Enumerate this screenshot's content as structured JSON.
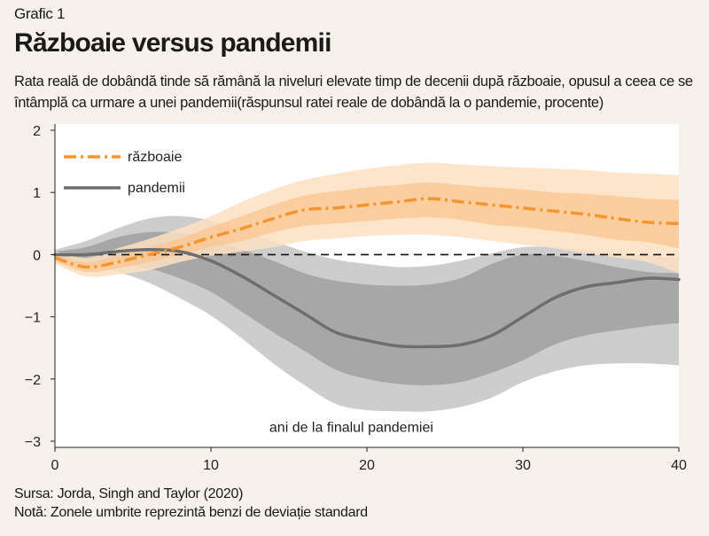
{
  "figure_label": "Grafic 1",
  "title": "Războaie versus pandemii",
  "subtitle": "Rata reală de dobândă tinde să rămână la niveluri elevate timp de decenii după războaie, opusul a ceea ce se întâmplă ca urmare a unei pandemii(răspunsul ratei reale de dobândă la o pandemie, procente)",
  "source": "Sursa: Jorda, Singh and Taylor (2020)",
  "note": "Notă: Zonele umbrite reprezintă benzi de deviație standard",
  "colors": {
    "war_line": "#f39530",
    "war_band_outer": "#fde0c2",
    "war_band_inner": "#fbc48f",
    "pandemic_line": "#6e6e72",
    "pandemic_band_outer": "#c8c8c8",
    "pandemic_band_inner": "#9a9a9a",
    "background": "#ffffff"
  },
  "chart_data": {
    "type": "line",
    "title": "Războaie versus pandemii",
    "xlabel": "ani de la finalul pandemiei",
    "ylabel": "",
    "xlim": [
      0,
      40
    ],
    "ylim": [
      -3.1,
      2.1
    ],
    "x_ticks": [
      0,
      10,
      20,
      30,
      40
    ],
    "y_ticks": [
      2,
      1,
      0,
      -1,
      -2,
      -3
    ],
    "y_tick_labels": [
      "2",
      "1",
      "0",
      "−1",
      "−2",
      "−3"
    ],
    "zero_line": true,
    "legend_position": "top-left",
    "x": [
      0,
      2,
      4,
      6,
      8,
      10,
      12,
      14,
      16,
      18,
      20,
      22,
      24,
      26,
      28,
      30,
      32,
      34,
      36,
      38,
      40
    ],
    "series": [
      {
        "name": "războaie",
        "style": "dash-dot",
        "values": [
          -0.05,
          -0.2,
          -0.12,
          0.0,
          0.12,
          0.28,
          0.42,
          0.58,
          0.72,
          0.75,
          0.8,
          0.85,
          0.9,
          0.85,
          0.8,
          0.75,
          0.7,
          0.65,
          0.58,
          0.52,
          0.5
        ],
        "band_inner": {
          "lower": [
            -0.1,
            -0.28,
            -0.22,
            -0.12,
            0.0,
            0.12,
            0.22,
            0.36,
            0.46,
            0.5,
            0.54,
            0.58,
            0.6,
            0.56,
            0.48,
            0.44,
            0.38,
            0.32,
            0.24,
            0.2,
            0.1
          ],
          "upper": [
            0.0,
            -0.12,
            -0.02,
            0.12,
            0.26,
            0.45,
            0.62,
            0.8,
            0.95,
            1.02,
            1.08,
            1.12,
            1.16,
            1.12,
            1.08,
            1.05,
            1.0,
            0.98,
            0.94,
            0.9,
            0.88
          ]
        },
        "band_outer": {
          "lower": [
            -0.15,
            -0.35,
            -0.32,
            -0.25,
            -0.12,
            -0.02,
            0.05,
            0.12,
            0.22,
            0.26,
            0.3,
            0.32,
            0.32,
            0.28,
            0.22,
            0.16,
            0.1,
            0.02,
            -0.05,
            -0.12,
            -0.3
          ],
          "upper": [
            0.05,
            -0.05,
            0.1,
            0.25,
            0.42,
            0.62,
            0.85,
            1.05,
            1.2,
            1.3,
            1.38,
            1.44,
            1.48,
            1.45,
            1.42,
            1.4,
            1.38,
            1.36,
            1.32,
            1.3,
            1.28
          ]
        }
      },
      {
        "name": "pandemii",
        "style": "solid",
        "values": [
          0.0,
          0.0,
          0.05,
          0.08,
          0.05,
          -0.1,
          -0.35,
          -0.65,
          -0.95,
          -1.25,
          -1.38,
          -1.47,
          -1.48,
          -1.45,
          -1.3,
          -1.0,
          -0.7,
          -0.52,
          -0.45,
          -0.38,
          -0.4
        ],
        "band_inner": {
          "lower": [
            -0.05,
            -0.1,
            -0.15,
            -0.22,
            -0.38,
            -0.6,
            -0.92,
            -1.25,
            -1.55,
            -1.85,
            -2.0,
            -2.08,
            -2.1,
            -2.05,
            -1.9,
            -1.7,
            -1.45,
            -1.3,
            -1.22,
            -1.15,
            -1.1
          ],
          "upper": [
            0.05,
            0.12,
            0.28,
            0.36,
            0.35,
            0.25,
            0.08,
            -0.1,
            -0.3,
            -0.42,
            -0.48,
            -0.5,
            -0.48,
            -0.38,
            -0.15,
            0.0,
            -0.02,
            -0.1,
            -0.2,
            -0.28,
            -0.3
          ]
        },
        "band_outer": {
          "lower": [
            -0.08,
            -0.18,
            -0.28,
            -0.45,
            -0.7,
            -0.98,
            -1.35,
            -1.75,
            -2.1,
            -2.4,
            -2.5,
            -2.52,
            -2.52,
            -2.45,
            -2.3,
            -2.05,
            -1.88,
            -1.78,
            -1.75,
            -1.75,
            -1.78
          ],
          "upper": [
            0.08,
            0.22,
            0.42,
            0.58,
            0.62,
            0.55,
            0.4,
            0.22,
            0.05,
            -0.08,
            -0.15,
            -0.2,
            -0.18,
            -0.1,
            0.02,
            0.12,
            0.12,
            0.08,
            0.02,
            -0.02,
            -0.05
          ]
        }
      }
    ]
  }
}
